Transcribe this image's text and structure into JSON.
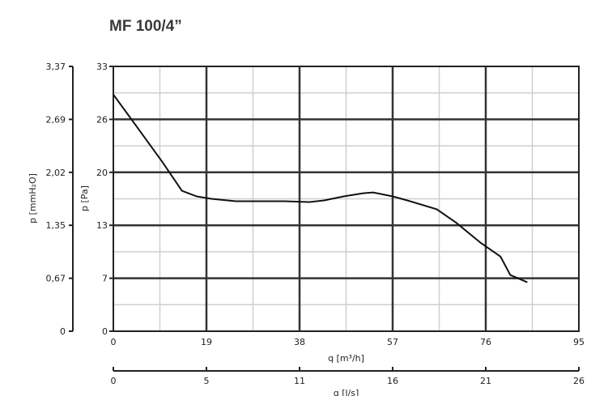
{
  "chart_data": {
    "type": "line",
    "title": "MF 100/4”",
    "xlabel": "q [m³/h]",
    "x2label": "q [l/s]",
    "ylabel": "p [Pa]",
    "y2label": "p [mmH₂O]",
    "xlim": [
      0,
      95
    ],
    "ylim": [
      0,
      33
    ],
    "x_ticks": [
      "0",
      "19",
      "38",
      "57",
      "76",
      "95"
    ],
    "y_ticks": [
      "0",
      "7",
      "13",
      "20",
      "26",
      "33"
    ],
    "y2_ticks": [
      "0",
      "0,67",
      "1,35",
      "2,02",
      "2,69",
      "3,37"
    ],
    "x2_ticks": [
      "0",
      "5",
      "11",
      "16",
      "21",
      "26"
    ],
    "grid": true,
    "series": [
      {
        "x": [
          0,
          5,
          10,
          14,
          17,
          20,
          25,
          30,
          35,
          40,
          43,
          47,
          51,
          53,
          57,
          60,
          66,
          70,
          75,
          79,
          81,
          84.5
        ],
        "y": [
          29.5,
          25.3,
          21.1,
          17.5,
          16.8,
          16.5,
          16.2,
          16.2,
          16.2,
          16.1,
          16.3,
          16.8,
          17.2,
          17.3,
          16.8,
          16.3,
          15.2,
          13.5,
          11.0,
          9.3,
          7.0,
          6.1
        ]
      }
    ]
  }
}
